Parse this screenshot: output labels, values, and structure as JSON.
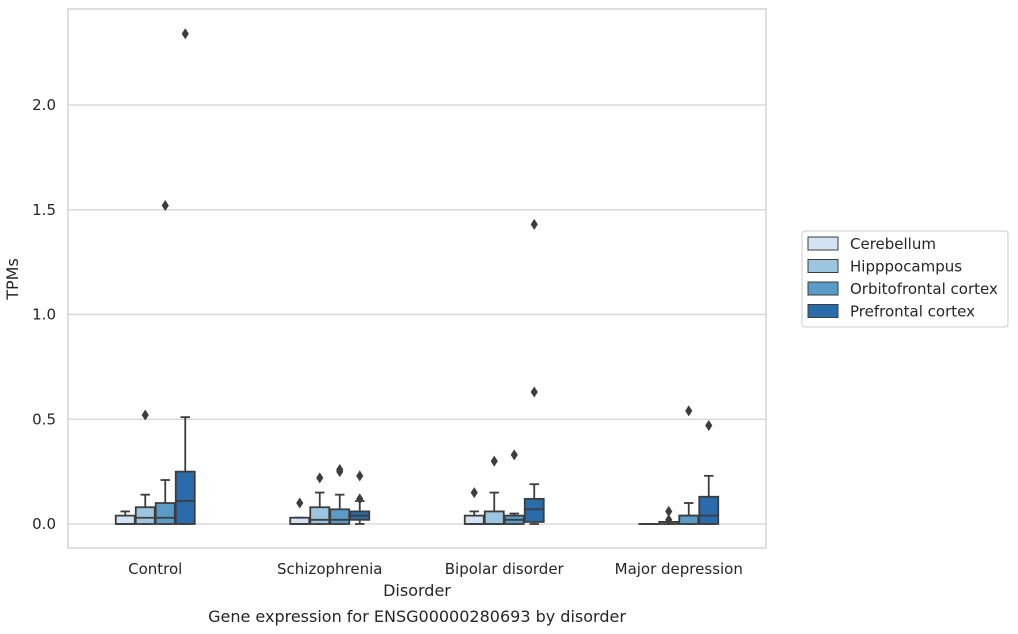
{
  "chart_data": {
    "type": "boxplot",
    "caption": "Gene expression for ENSG00000280693 by disorder",
    "xlabel": "Disorder",
    "ylabel": "TPMs",
    "ylim": [
      -0.11,
      2.46
    ],
    "yticks": [
      "0.0",
      "0.5",
      "1.0",
      "1.5",
      "2.0"
    ],
    "ytick_values": [
      0.0,
      0.5,
      1.0,
      1.5,
      2.0
    ],
    "grid": "horizontal",
    "legend_position": "right",
    "categories": [
      "Control",
      "Schizophrenia",
      "Bipolar disorder",
      "Major depression"
    ],
    "series": [
      {
        "name": "Cerebellum",
        "color": "#d4e3f2",
        "boxes": [
          {
            "whislo": 0.0,
            "q1": 0.0,
            "med": 0.0,
            "q3": 0.04,
            "whishi": 0.06,
            "fliers": []
          },
          {
            "whislo": 0.0,
            "q1": 0.0,
            "med": 0.0,
            "q3": 0.03,
            "whishi": 0.03,
            "fliers": [
              0.1
            ]
          },
          {
            "whislo": 0.0,
            "q1": 0.0,
            "med": 0.0,
            "q3": 0.04,
            "whishi": 0.06,
            "fliers": [
              0.15
            ]
          },
          {
            "whislo": 0.0,
            "q1": 0.0,
            "med": 0.0,
            "q3": 0.0,
            "whishi": 0.0,
            "fliers": []
          }
        ]
      },
      {
        "name": "Hipppocampus",
        "color": "#9dc5df",
        "boxes": [
          {
            "whislo": 0.0,
            "q1": 0.0,
            "med": 0.03,
            "q3": 0.08,
            "whishi": 0.14,
            "fliers": [
              0.52
            ]
          },
          {
            "whislo": 0.0,
            "q1": 0.0,
            "med": 0.02,
            "q3": 0.08,
            "whishi": 0.15,
            "fliers": [
              0.22
            ]
          },
          {
            "whislo": 0.0,
            "q1": 0.0,
            "med": 0.0,
            "q3": 0.06,
            "whishi": 0.15,
            "fliers": [
              0.3
            ]
          },
          {
            "whislo": 0.0,
            "q1": 0.0,
            "med": 0.01,
            "q3": 0.01,
            "whishi": 0.01,
            "fliers": [
              0.02,
              0.06
            ]
          }
        ]
      },
      {
        "name": "Orbitofrontal cortex",
        "color": "#5a9cc8",
        "boxes": [
          {
            "whislo": 0.0,
            "q1": 0.0,
            "med": 0.03,
            "q3": 0.1,
            "whishi": 0.21,
            "fliers": [
              1.52
            ]
          },
          {
            "whislo": 0.0,
            "q1": 0.0,
            "med": 0.02,
            "q3": 0.07,
            "whishi": 0.14,
            "fliers": [
              0.25,
              0.26
            ]
          },
          {
            "whislo": 0.0,
            "q1": 0.0,
            "med": 0.02,
            "q3": 0.04,
            "whishi": 0.05,
            "fliers": [
              0.33
            ]
          },
          {
            "whislo": 0.0,
            "q1": 0.0,
            "med": 0.04,
            "q3": 0.04,
            "whishi": 0.1,
            "fliers": [
              0.54
            ]
          }
        ]
      },
      {
        "name": "Prefrontal cortex",
        "color": "#2a6bab",
        "boxes": [
          {
            "whislo": 0.0,
            "q1": 0.0,
            "med": 0.11,
            "q3": 0.25,
            "whishi": 0.51,
            "fliers": [
              2.34
            ]
          },
          {
            "whislo": 0.0,
            "q1": 0.02,
            "med": 0.04,
            "q3": 0.06,
            "whishi": 0.11,
            "fliers": [
              0.12,
              0.23
            ]
          },
          {
            "whislo": 0.0,
            "q1": 0.01,
            "med": 0.07,
            "q3": 0.12,
            "whishi": 0.19,
            "fliers": [
              0.63,
              1.43
            ]
          },
          {
            "whislo": 0.0,
            "q1": 0.0,
            "med": 0.04,
            "q3": 0.13,
            "whishi": 0.23,
            "fliers": [
              0.47
            ]
          }
        ]
      }
    ]
  }
}
